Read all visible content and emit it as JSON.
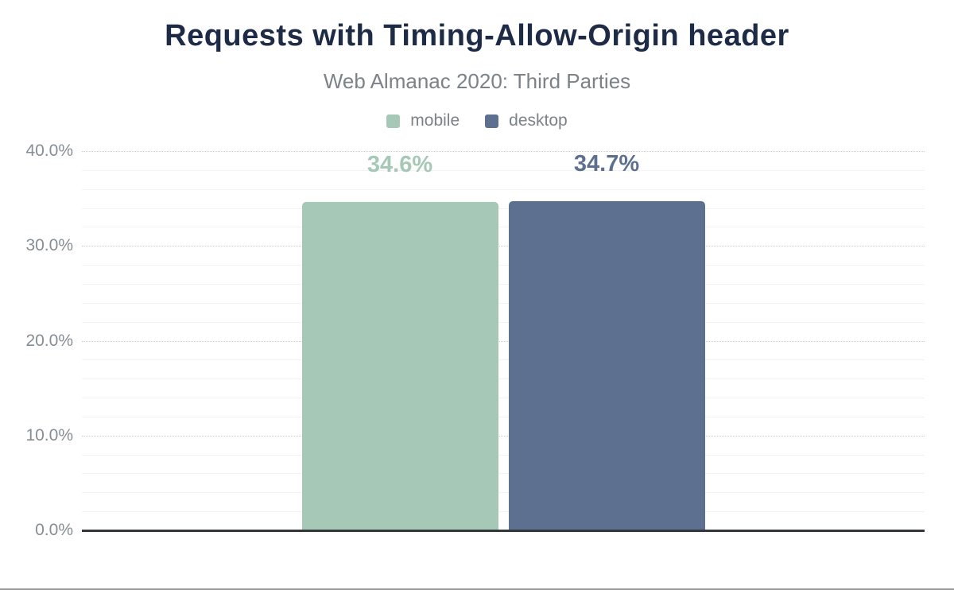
{
  "page": {
    "background": "#ffffff",
    "bottom_border_color": "#9b9b9b"
  },
  "chart_data": {
    "type": "bar",
    "title": "Requests with Timing-Allow-Origin header",
    "subtitle": "Web Almanac 2020: Third Parties",
    "categories": [
      "mobile",
      "desktop"
    ],
    "series": [
      {
        "name": "mobile",
        "value": 34.6,
        "label": "34.6%",
        "color": "#a6c8b7"
      },
      {
        "name": "desktop",
        "value": 34.7,
        "label": "34.7%",
        "color": "#5e708f"
      }
    ],
    "xlabel": "",
    "ylabel": "",
    "ylim": [
      0,
      40
    ],
    "yticks": [
      {
        "value": 0,
        "label": "0.0%"
      },
      {
        "value": 10,
        "label": "10.0%"
      },
      {
        "value": 20,
        "label": "20.0%"
      },
      {
        "value": 30,
        "label": "30.0%"
      },
      {
        "value": 40,
        "label": "40.0%"
      }
    ],
    "minor_grid_step": 2,
    "grid": true,
    "legend_position": "top",
    "legend": [
      "mobile",
      "desktop"
    ],
    "colors": {
      "title": "#1e2b46",
      "subtitle": "#7b8288",
      "legend_text": "#7a828a",
      "tick_label": "#868e95",
      "axis_line": "#33373d",
      "major_grid": "#cbcfd2",
      "minor_grid": "#f2f3f3"
    }
  }
}
